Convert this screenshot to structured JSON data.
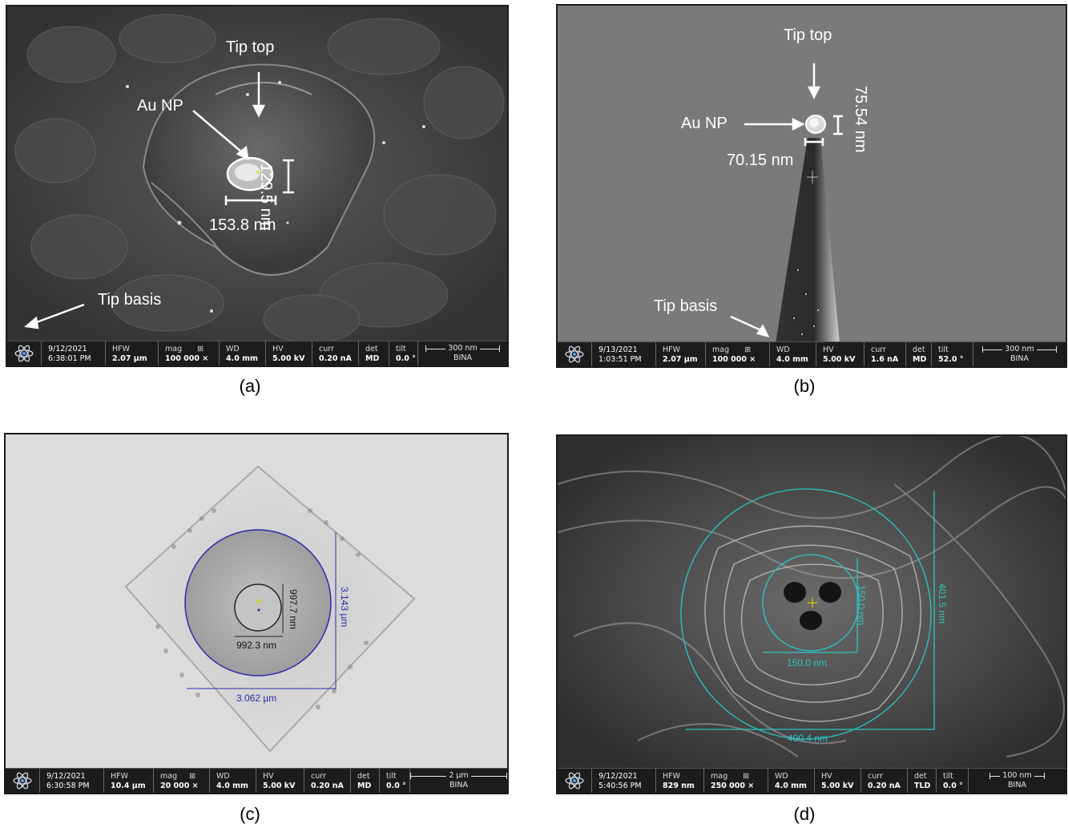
{
  "panels": {
    "a": {
      "caption": "(a)",
      "labels": {
        "tip_top": "Tip top",
        "au_np": "Au NP",
        "tip_basis": "Tip basis",
        "height": "129.5 nm",
        "width": "153.8 nm"
      },
      "bar": {
        "date": "9/12/2021",
        "time": "6:38:01 PM",
        "hfw": "2.07 µm",
        "mag": "100 000 ×",
        "wd": "4.0 mm",
        "hv": "5.00 kV",
        "curr": "0.20 nA",
        "det": "MD",
        "tilt": "0.0 °",
        "scale": "300 nm",
        "lab": "BINA"
      }
    },
    "b": {
      "caption": "(b)",
      "labels": {
        "tip_top": "Tip top",
        "au_np": "Au NP",
        "tip_basis": "Tip basis",
        "height": "75.54 nm",
        "width": "70.15 nm"
      },
      "bar": {
        "date": "9/13/2021",
        "time": "1:03:51 PM",
        "hfw": "2.07 µm",
        "mag": "100 000 ×",
        "wd": "4.0 mm",
        "hv": "5.00 kV",
        "curr": "1.6 nA",
        "det": "MD",
        "tilt": "52.0 °",
        "scale": "300 nm",
        "lab": "BINA"
      }
    },
    "c": {
      "caption": "(c)",
      "labels": {
        "inner_h": "997.7 nm",
        "inner_w": "992.3 nm",
        "outer_h": "3.143 µm",
        "outer_w": "3.062 µm"
      },
      "bar": {
        "date": "9/12/2021",
        "time": "6:30:58 PM",
        "hfw": "10.4 µm",
        "mag": "20 000 ×",
        "wd": "4.0 mm",
        "hv": "5.00 kV",
        "curr": "0.20 nA",
        "det": "MD",
        "tilt": "0.0 °",
        "scale": "2 µm",
        "lab": "BINA"
      }
    },
    "d": {
      "caption": "(d)",
      "labels": {
        "inner_h": "150.0 nm",
        "inner_w": "150.0 nm",
        "outer_h": "401.5 nm",
        "outer_w": "400.4 nm"
      },
      "bar": {
        "date": "9/12/2021",
        "time": "5:40:56 PM",
        "hfw": "829 nm",
        "mag": "250 000 ×",
        "wd": "4.0 mm",
        "hv": "5.00 kV",
        "curr": "0.20 nA",
        "det": "TLD",
        "tilt": "0.0 °",
        "scale": "100 nm",
        "lab": "BINA"
      }
    }
  },
  "bar_headers": {
    "hfw": "HFW",
    "mag": "mag",
    "wd": "WD",
    "hv": "HV",
    "curr": "curr",
    "det": "det",
    "tilt": "tilt"
  },
  "colors": {
    "measure_blue": "#2a2aa8",
    "measure_cyan": "#2fc4c4",
    "bar_bg": "#1c1c1c"
  },
  "icons": {
    "bar_logo": "atom-icon",
    "mag_mode": "grid-icon"
  }
}
